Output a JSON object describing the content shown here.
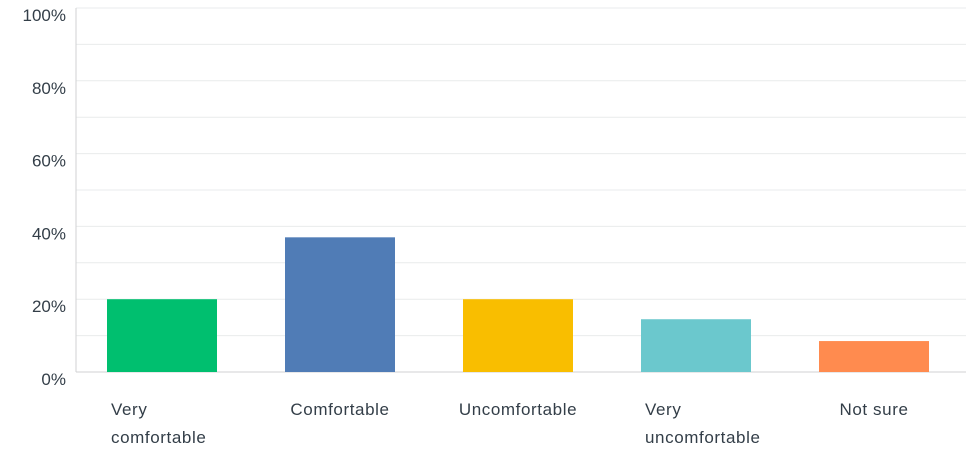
{
  "chart_data": {
    "type": "bar",
    "categories": [
      [
        "Very",
        "comfortable"
      ],
      [
        "Comfortable"
      ],
      [
        "Uncomfortable"
      ],
      [
        "Very",
        "uncomfortable"
      ],
      [
        "Not sure"
      ]
    ],
    "values": [
      20,
      37,
      20,
      14.5,
      8.5
    ],
    "colors": [
      "#00bf6f",
      "#507cb6",
      "#f9be00",
      "#6bc8cd",
      "#ff8b4f"
    ],
    "ylim": [
      0,
      100
    ],
    "y_ticks": [
      "0%",
      "20%",
      "40%",
      "60%",
      "80%",
      "100%"
    ],
    "y_tick_values": [
      0,
      20,
      40,
      60,
      80,
      100
    ],
    "minor_gridlines": [
      10,
      30,
      50,
      70,
      90
    ],
    "grid": true,
    "title": "",
    "xlabel": "",
    "ylabel": ""
  }
}
